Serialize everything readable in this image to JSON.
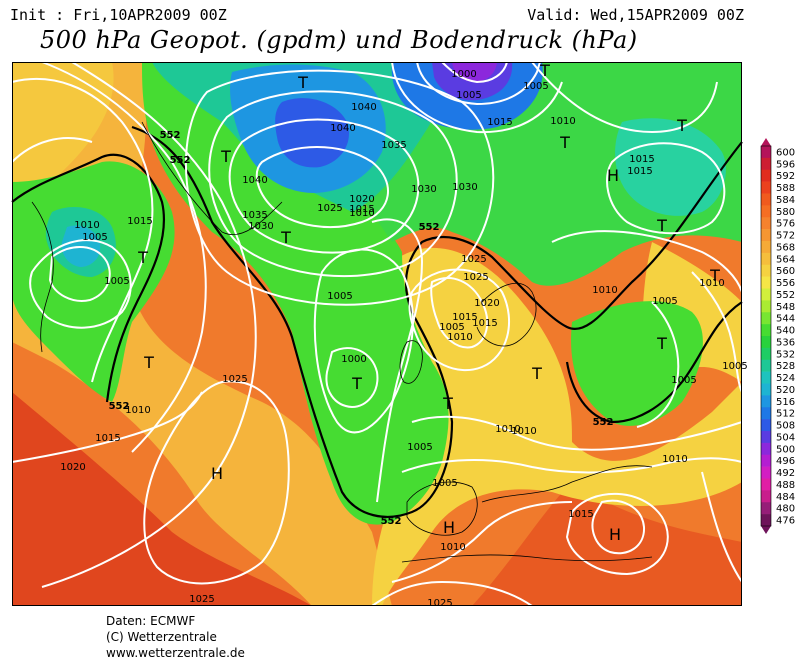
{
  "header": {
    "init": "Init : Fri,10APR2009 00Z",
    "valid": "Valid: Wed,15APR2009 00Z",
    "title": "500 hPa Geopot. (gpdm) und Bodendruck (hPa)"
  },
  "map": {
    "isobar_labels": [
      "1000",
      "1005",
      "1005",
      "1010",
      "1015",
      "1040",
      "1040",
      "1035",
      "1030",
      "1020",
      "1015",
      "1010",
      "1040",
      "1035",
      "1030",
      "1025",
      "1005",
      "1010",
      "1015",
      "1005",
      "1010",
      "1015",
      "1020",
      "1025",
      "1030",
      "1015",
      "1010",
      "1005",
      "1000",
      "1005",
      "1005",
      "1010",
      "1015",
      "1020",
      "1025",
      "1025",
      "1010",
      "1015",
      "1010",
      "1005",
      "1015",
      "1005",
      "1010",
      "1010",
      "1005",
      "1025",
      "1005",
      "1010",
      "1025",
      "1015"
    ],
    "geopotential_labels": [
      "552",
      "552",
      "552",
      "552",
      "552",
      "552"
    ],
    "pressure_centers": [
      "T",
      "T",
      "T",
      "T",
      "T",
      "T",
      "T",
      "T",
      "T",
      "T",
      "T",
      "T",
      "T",
      "T",
      "H",
      "H",
      "H",
      "H"
    ]
  },
  "colorbar": {
    "labels": [
      "600",
      "596",
      "592",
      "588",
      "584",
      "580",
      "576",
      "572",
      "568",
      "564",
      "560",
      "556",
      "552",
      "548",
      "544",
      "540",
      "536",
      "532",
      "528",
      "524",
      "520",
      "516",
      "512",
      "508",
      "504",
      "500",
      "496",
      "492",
      "488",
      "484",
      "480",
      "476"
    ],
    "colors": [
      "#b4145a",
      "#cd1e32",
      "#e12d1e",
      "#eb411e",
      "#f05a1e",
      "#f56e23",
      "#f5822d",
      "#f59632",
      "#f5aa37",
      "#f5be3c",
      "#f5d241",
      "#f5e646",
      "#d2f03c",
      "#aaeb32",
      "#78e632",
      "#46dc32",
      "#28d23c",
      "#1ecd64",
      "#1ec896",
      "#1ec3be",
      "#1eb4d2",
      "#1e96e1",
      "#1e78e6",
      "#2d5ae6",
      "#5a3ce1",
      "#8c28dc",
      "#b41ed2",
      "#d21ec3",
      "#e11ea5",
      "#c81e8c",
      "#961e78",
      "#6e145a"
    ]
  },
  "footer": {
    "line1": "Daten: ECMWF",
    "line2": "(C) Wetterzentrale",
    "line3": "www.wetterzentrale.de"
  }
}
